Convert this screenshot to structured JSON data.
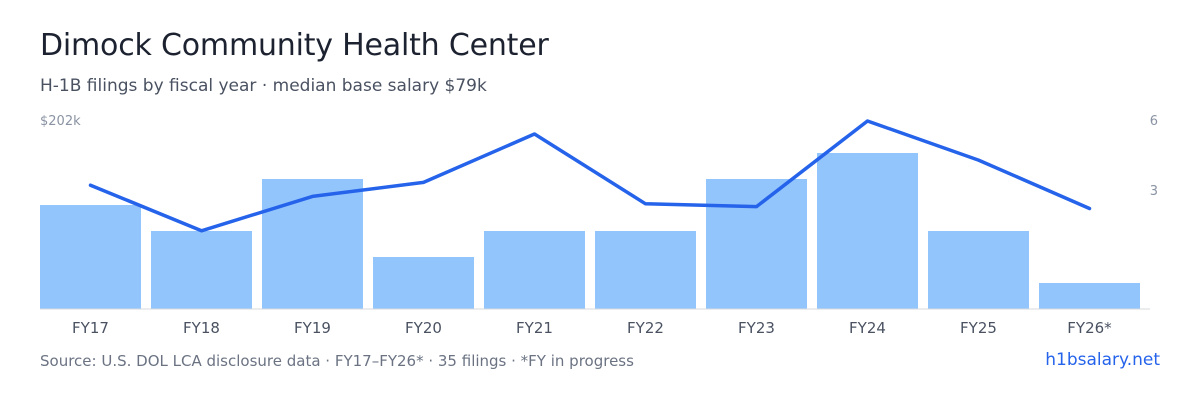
{
  "header": {
    "title": "Dimock Community Health Center",
    "subtitle": "H-1B filings by fiscal year · median base salary $79k"
  },
  "footer": {
    "source": "Source: U.S. DOL LCA disclosure data · FY17–FY26* · 35 filings · *FY in progress",
    "brand": "h1bsalary.net"
  },
  "colors": {
    "bar": "#93c5fd",
    "line": "#2563eb",
    "axis_text": "#4a5262",
    "tick_text": "#8a93a3",
    "baseline": "#d4d8de"
  },
  "chart_data": {
    "type": "bar",
    "categories": [
      "FY17",
      "FY18",
      "FY19",
      "FY20",
      "FY21",
      "FY22",
      "FY23",
      "FY24",
      "FY25",
      "FY26*"
    ],
    "series": [
      {
        "values": [
          4,
          3,
          5,
          2,
          3,
          3,
          5,
          6,
          3,
          1
        ],
        "axis": "right",
        "ylim": [
          0,
          6
        ],
        "ticks": [
          "3",
          "6"
        ]
      },
      {
        "type": "line",
        "values": [
          133000,
          84000,
          121000,
          136000,
          188000,
          113000,
          110000,
          202000,
          160000,
          108000
        ],
        "axis": "left",
        "ylim": [
          0,
          202000
        ],
        "ticks": [
          "$202k"
        ]
      }
    ],
    "grid": false,
    "legend": "none"
  }
}
